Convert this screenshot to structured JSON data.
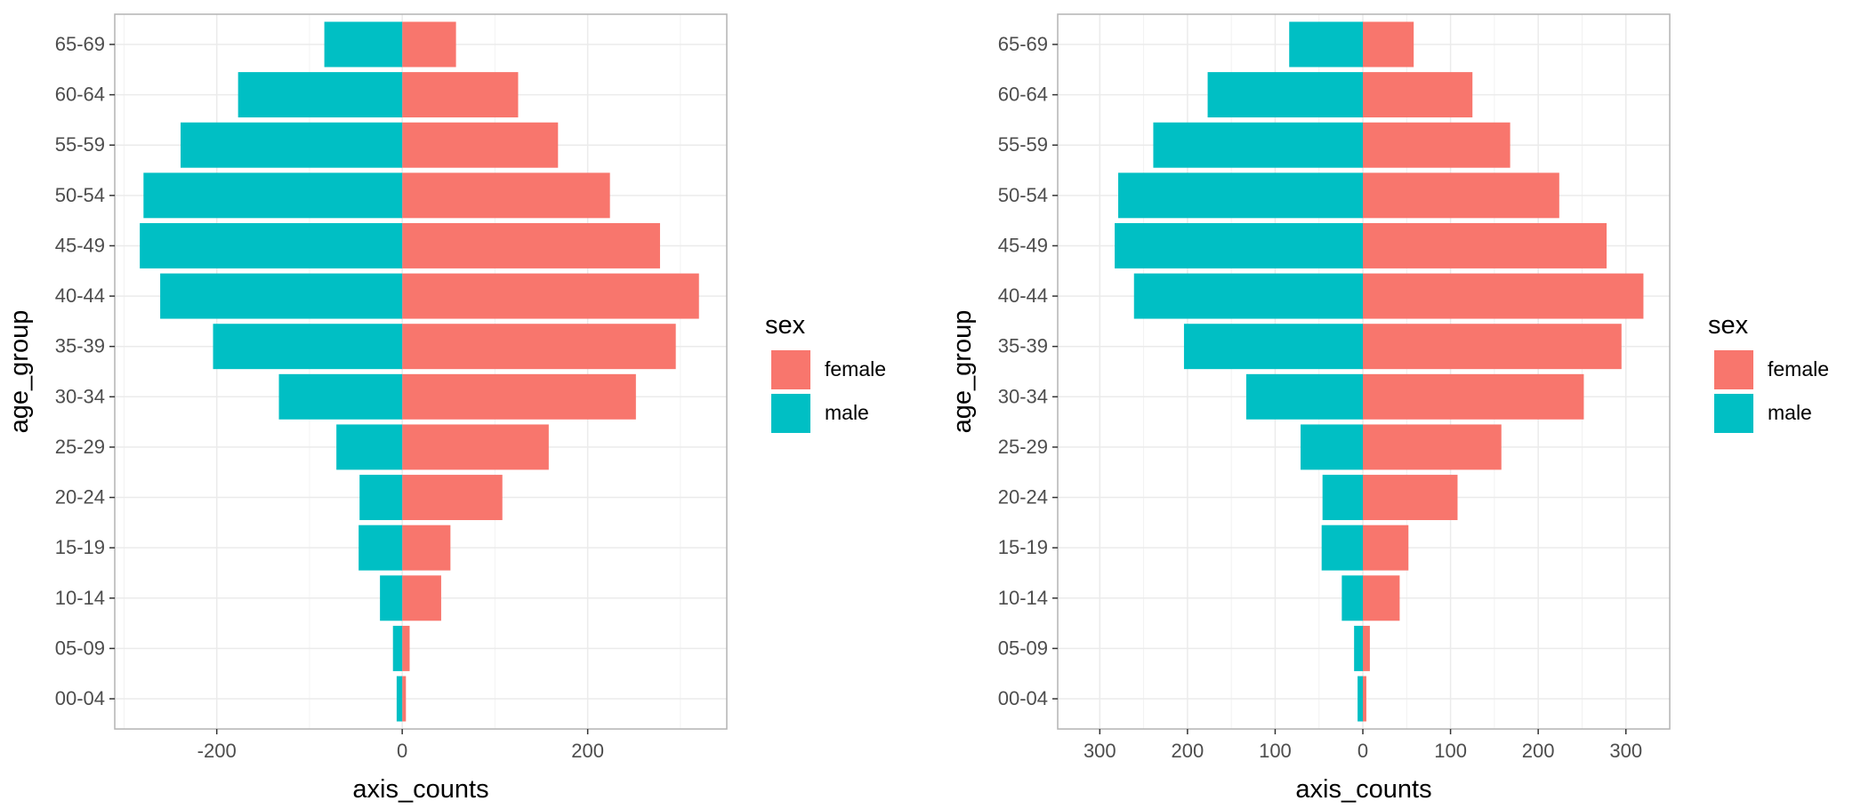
{
  "chart_data": [
    {
      "type": "bar",
      "orientation": "horizontal",
      "style": "population-pyramid",
      "categories": [
        "00-04",
        "05-09",
        "10-14",
        "15-19",
        "20-24",
        "25-29",
        "30-34",
        "35-39",
        "40-44",
        "45-49",
        "50-54",
        "55-59",
        "60-64",
        "65-69"
      ],
      "series": [
        {
          "name": "female",
          "color": "#F8766D",
          "values": [
            4,
            8,
            42,
            52,
            108,
            158,
            252,
            295,
            320,
            278,
            224,
            168,
            125,
            58
          ]
        },
        {
          "name": "male",
          "color": "#00BFC4",
          "values": [
            -6,
            -10,
            -24,
            -47,
            -46,
            -71,
            -133,
            -204,
            -261,
            -283,
            -279,
            -239,
            -177,
            -84
          ]
        }
      ],
      "xlabel": "axis_counts",
      "ylabel": "age_group",
      "xlim": [
        -310,
        350
      ],
      "xticks": [
        -200,
        0,
        200
      ],
      "xtick_labels": [
        "-200",
        "0",
        "200"
      ],
      "grid": true,
      "legend": {
        "title": "sex",
        "position": "right",
        "entries": [
          "female",
          "male"
        ]
      }
    },
    {
      "type": "bar",
      "orientation": "horizontal",
      "style": "population-pyramid",
      "categories": [
        "00-04",
        "05-09",
        "10-14",
        "15-19",
        "20-24",
        "25-29",
        "30-34",
        "35-39",
        "40-44",
        "45-49",
        "50-54",
        "55-59",
        "60-64",
        "65-69"
      ],
      "series": [
        {
          "name": "female",
          "color": "#F8766D",
          "values": [
            4,
            8,
            42,
            52,
            108,
            158,
            252,
            295,
            320,
            278,
            224,
            168,
            125,
            58
          ]
        },
        {
          "name": "male",
          "color": "#00BFC4",
          "values": [
            -6,
            -10,
            -24,
            -47,
            -46,
            -71,
            -133,
            -204,
            -261,
            -283,
            -279,
            -239,
            -177,
            -84
          ]
        }
      ],
      "xlabel": "axis_counts",
      "ylabel": "age_group",
      "xlim": [
        -348,
        350
      ],
      "xticks": [
        -300,
        -200,
        -100,
        0,
        100,
        200,
        300
      ],
      "xtick_labels": [
        "300",
        "200",
        "100",
        "0",
        "100",
        "200",
        "300"
      ],
      "grid": true,
      "legend": {
        "title": "sex",
        "position": "right",
        "entries": [
          "female",
          "male"
        ]
      }
    }
  ]
}
